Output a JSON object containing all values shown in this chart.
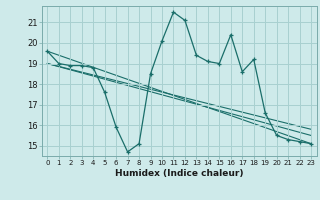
{
  "xlabel": "Humidex (Indice chaleur)",
  "background_color": "#ceeaea",
  "grid_color": "#a8d0d0",
  "line_color": "#1a6e6a",
  "xlim": [
    -0.5,
    23.5
  ],
  "ylim": [
    14.5,
    21.8
  ],
  "yticks": [
    15,
    16,
    17,
    18,
    19,
    20,
    21
  ],
  "xticks": [
    0,
    1,
    2,
    3,
    4,
    5,
    6,
    7,
    8,
    9,
    10,
    11,
    12,
    13,
    14,
    15,
    16,
    17,
    18,
    19,
    20,
    21,
    22,
    23
  ],
  "series_main": {
    "x": [
      0,
      1,
      2,
      3,
      4,
      5,
      6,
      7,
      8,
      9,
      10,
      11,
      12,
      13,
      14,
      15,
      16,
      17,
      18,
      19,
      20,
      21,
      22,
      23
    ],
    "y": [
      19.6,
      19.0,
      18.9,
      18.9,
      18.8,
      17.6,
      15.9,
      14.7,
      15.1,
      18.5,
      20.1,
      21.5,
      21.1,
      19.4,
      19.1,
      19.0,
      20.4,
      18.6,
      19.2,
      16.6,
      15.5,
      15.3,
      15.2,
      15.1
    ]
  },
  "trend_lines": [
    {
      "x": [
        0,
        23
      ],
      "y": [
        19.6,
        15.1
      ]
    },
    {
      "x": [
        0,
        23
      ],
      "y": [
        19.0,
        15.5
      ]
    },
    {
      "x": [
        0,
        23
      ],
      "y": [
        19.0,
        15.8
      ]
    }
  ]
}
